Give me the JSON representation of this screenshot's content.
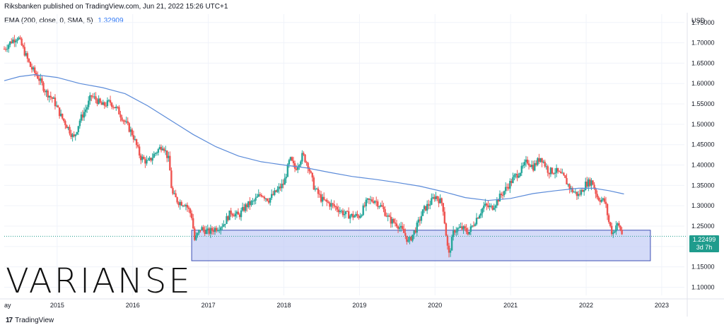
{
  "header": {
    "publisher": "Riksbanken published on TradingView.com, Jun 21, 2022 15:26 UTC+1"
  },
  "indicator": {
    "label": "EMA (200, close, 0, SMA, 5)",
    "value": "1.32909"
  },
  "axis": {
    "currency": "USD"
  },
  "price_badge": {
    "price": "1.22499",
    "time_left": "3d 7h"
  },
  "watermark": "VARIANSE",
  "footer": {
    "logo_text": "17",
    "brand": "TradingView"
  },
  "colors": {
    "up": "#26a69a",
    "down": "#ef5350",
    "ema": "#5b8bd9",
    "zone_fill": "#c5cff5",
    "zone_stroke": "#3f51b5",
    "badge": "#1f9c8d"
  },
  "chart_data": {
    "type": "candlestick",
    "title": "",
    "xlabel": "",
    "ylabel": "USD",
    "ylim": [
      1.08,
      1.76
    ],
    "xlim": [
      2014.3,
      2023.3
    ],
    "y_ticks": [
      "1.75000",
      "1.70000",
      "1.65000",
      "1.60000",
      "1.55000",
      "1.50000",
      "1.45000",
      "1.40000",
      "1.35000",
      "1.30000",
      "1.25000",
      "1.20000",
      "1.15000",
      "1.10000"
    ],
    "x_ticks": [
      {
        "label": "ay",
        "x": 2014.3
      },
      {
        "label": "2015",
        "x": 2015.0
      },
      {
        "label": "2016",
        "x": 2016.0
      },
      {
        "label": "2017",
        "x": 2017.0
      },
      {
        "label": "2018",
        "x": 2018.0
      },
      {
        "label": "2019",
        "x": 2019.0
      },
      {
        "label": "2020",
        "x": 2020.0
      },
      {
        "label": "2021",
        "x": 2021.0
      },
      {
        "label": "2022",
        "x": 2022.0
      },
      {
        "label": "2023",
        "x": 2023.0
      }
    ],
    "close_path": [
      [
        2014.3,
        1.685
      ],
      [
        2014.4,
        1.705
      ],
      [
        2014.48,
        1.715
      ],
      [
        2014.55,
        1.685
      ],
      [
        2014.65,
        1.64
      ],
      [
        2014.75,
        1.615
      ],
      [
        2014.85,
        1.58
      ],
      [
        2014.95,
        1.56
      ],
      [
        2015.05,
        1.52
      ],
      [
        2015.15,
        1.49
      ],
      [
        2015.22,
        1.465
      ],
      [
        2015.3,
        1.51
      ],
      [
        2015.4,
        1.545
      ],
      [
        2015.45,
        1.57
      ],
      [
        2015.52,
        1.56
      ],
      [
        2015.6,
        1.545
      ],
      [
        2015.7,
        1.555
      ],
      [
        2015.8,
        1.535
      ],
      [
        2015.9,
        1.505
      ],
      [
        2016.0,
        1.475
      ],
      [
        2016.1,
        1.42
      ],
      [
        2016.2,
        1.405
      ],
      [
        2016.3,
        1.43
      ],
      [
        2016.4,
        1.45
      ],
      [
        2016.48,
        1.41
      ],
      [
        2016.52,
        1.33
      ],
      [
        2016.6,
        1.31
      ],
      [
        2016.7,
        1.305
      ],
      [
        2016.78,
        1.275
      ],
      [
        2016.82,
        1.215
      ],
      [
        2016.9,
        1.245
      ],
      [
        2017.0,
        1.235
      ],
      [
        2017.1,
        1.245
      ],
      [
        2017.2,
        1.255
      ],
      [
        2017.3,
        1.285
      ],
      [
        2017.4,
        1.275
      ],
      [
        2017.5,
        1.3
      ],
      [
        2017.6,
        1.31
      ],
      [
        2017.7,
        1.33
      ],
      [
        2017.8,
        1.315
      ],
      [
        2017.9,
        1.335
      ],
      [
        2018.0,
        1.355
      ],
      [
        2018.08,
        1.415
      ],
      [
        2018.15,
        1.39
      ],
      [
        2018.25,
        1.425
      ],
      [
        2018.32,
        1.4
      ],
      [
        2018.4,
        1.345
      ],
      [
        2018.5,
        1.315
      ],
      [
        2018.6,
        1.305
      ],
      [
        2018.7,
        1.295
      ],
      [
        2018.8,
        1.28
      ],
      [
        2018.9,
        1.275
      ],
      [
        2019.0,
        1.275
      ],
      [
        2019.1,
        1.31
      ],
      [
        2019.2,
        1.315
      ],
      [
        2019.3,
        1.295
      ],
      [
        2019.4,
        1.265
      ],
      [
        2019.5,
        1.255
      ],
      [
        2019.6,
        1.23
      ],
      [
        2019.65,
        1.21
      ],
      [
        2019.75,
        1.245
      ],
      [
        2019.85,
        1.29
      ],
      [
        2019.95,
        1.31
      ],
      [
        2020.0,
        1.325
      ],
      [
        2020.1,
        1.305
      ],
      [
        2020.18,
        1.175
      ],
      [
        2020.25,
        1.24
      ],
      [
        2020.35,
        1.245
      ],
      [
        2020.45,
        1.235
      ],
      [
        2020.55,
        1.27
      ],
      [
        2020.65,
        1.3
      ],
      [
        2020.75,
        1.295
      ],
      [
        2020.85,
        1.32
      ],
      [
        2020.95,
        1.345
      ],
      [
        2021.05,
        1.37
      ],
      [
        2021.15,
        1.39
      ],
      [
        2021.22,
        1.41
      ],
      [
        2021.3,
        1.395
      ],
      [
        2021.4,
        1.42
      ],
      [
        2021.5,
        1.385
      ],
      [
        2021.6,
        1.385
      ],
      [
        2021.7,
        1.37
      ],
      [
        2021.8,
        1.34
      ],
      [
        2021.9,
        1.325
      ],
      [
        2022.0,
        1.355
      ],
      [
        2022.08,
        1.36
      ],
      [
        2022.15,
        1.32
      ],
      [
        2022.25,
        1.31
      ],
      [
        2022.3,
        1.26
      ],
      [
        2022.35,
        1.23
      ],
      [
        2022.4,
        1.255
      ],
      [
        2022.45,
        1.245
      ],
      [
        2022.48,
        1.225
      ]
    ],
    "series": [
      {
        "name": "EMA (200, close, 0, SMA, 5)",
        "points": [
          [
            2014.3,
            1.607
          ],
          [
            2014.5,
            1.617
          ],
          [
            2014.7,
            1.622
          ],
          [
            2015.0,
            1.615
          ],
          [
            2015.3,
            1.6
          ],
          [
            2015.6,
            1.59
          ],
          [
            2015.9,
            1.575
          ],
          [
            2016.2,
            1.545
          ],
          [
            2016.5,
            1.51
          ],
          [
            2016.8,
            1.475
          ],
          [
            2017.1,
            1.445
          ],
          [
            2017.4,
            1.422
          ],
          [
            2017.7,
            1.408
          ],
          [
            2018.0,
            1.4
          ],
          [
            2018.3,
            1.393
          ],
          [
            2018.6,
            1.382
          ],
          [
            2018.9,
            1.372
          ],
          [
            2019.2,
            1.365
          ],
          [
            2019.5,
            1.357
          ],
          [
            2019.8,
            1.348
          ],
          [
            2020.1,
            1.335
          ],
          [
            2020.4,
            1.32
          ],
          [
            2020.7,
            1.313
          ],
          [
            2021.0,
            1.318
          ],
          [
            2021.3,
            1.33
          ],
          [
            2021.6,
            1.337
          ],
          [
            2021.9,
            1.343
          ],
          [
            2022.1,
            1.343
          ],
          [
            2022.3,
            1.337
          ],
          [
            2022.5,
            1.329
          ]
        ]
      }
    ],
    "zone": {
      "x_start": 2016.78,
      "x_end": 2022.85,
      "y_low": 1.165,
      "y_high": 1.24
    },
    "last_price": 1.22499
  }
}
